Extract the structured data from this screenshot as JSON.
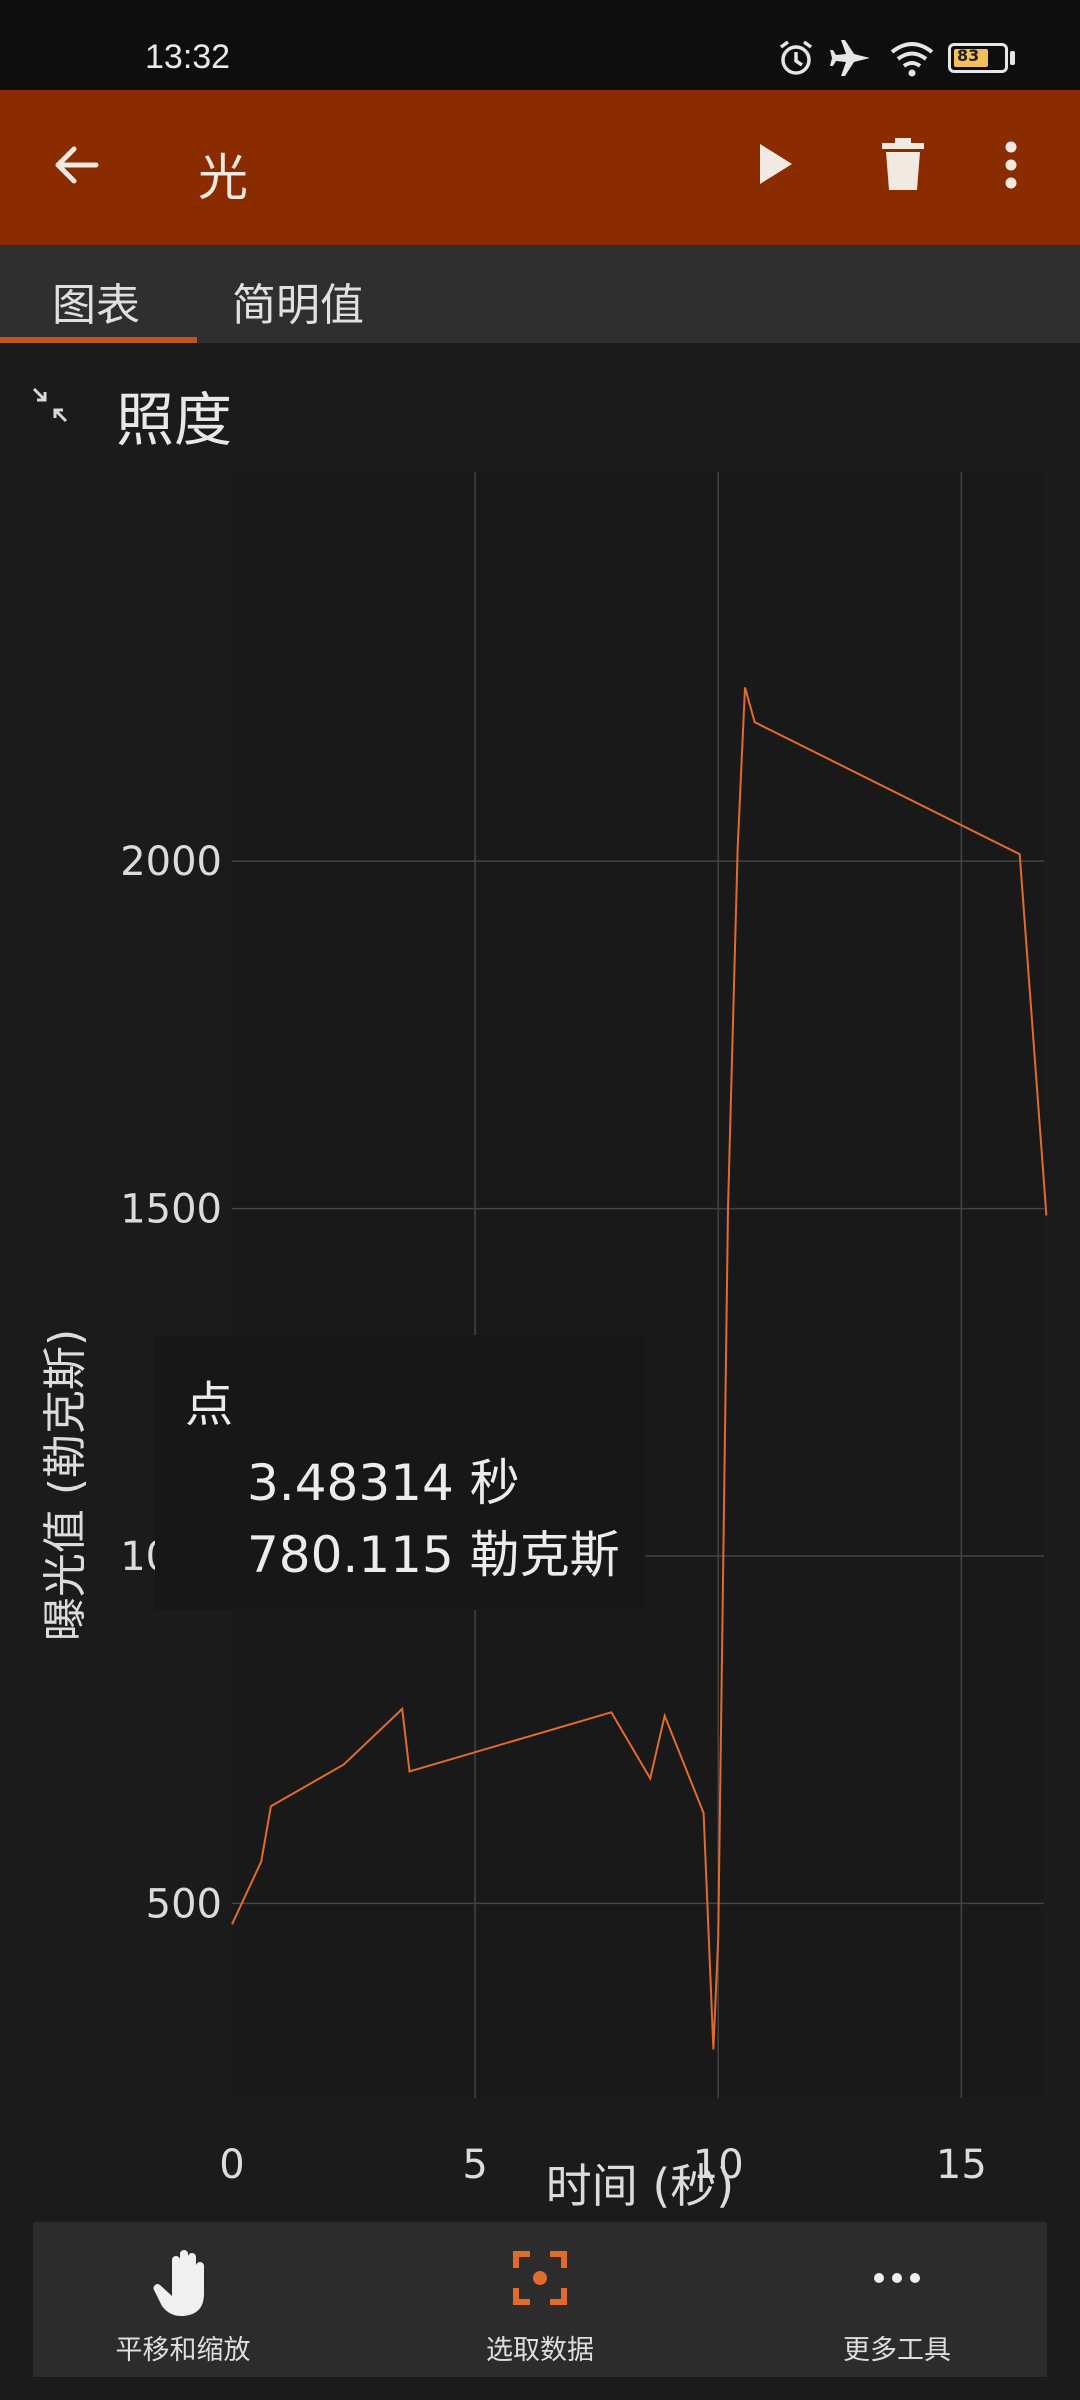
{
  "status_bar": {
    "time": "13:32",
    "battery_level": "83",
    "icons": [
      "alarm-icon",
      "airplane-icon",
      "wifi-icon",
      "battery-icon"
    ]
  },
  "app_bar": {
    "title": "光",
    "color": "#8b2c00"
  },
  "tabs": [
    {
      "label": "图表",
      "active": true
    },
    {
      "label": "简明值",
      "active": false
    }
  ],
  "section": {
    "title": "照度"
  },
  "chart_data": {
    "type": "line",
    "xlabel": "时间 (秒)",
    "ylabel": "曝光值 (勒克斯)",
    "xlim": [
      0,
      16.7
    ],
    "ylim": [
      220,
      2560
    ],
    "x_ticks": [
      "0",
      "5",
      "10",
      "15"
    ],
    "y_ticks": [
      "500",
      "1000",
      "1500",
      "2000"
    ],
    "grid": true,
    "line_color": "#e06b2c",
    "series": [
      {
        "x": [
          0,
          0.6,
          0.8,
          2.3,
          3.5,
          3.65,
          7.8,
          8.6,
          8.9,
          9.7,
          9.9,
          10.0,
          10.2,
          10.4,
          10.55,
          10.75,
          16.2,
          16.75
        ],
        "y": [
          470,
          560,
          640,
          700,
          780,
          690,
          775,
          680,
          770,
          630,
          290,
          450,
          1500,
          2020,
          2250,
          2200,
          2010,
          1490
        ]
      }
    ]
  },
  "tooltip": {
    "heading": "点",
    "x_value": "3.48314 秒",
    "y_value": "780.115 勒克斯"
  },
  "toolbar": {
    "pan_zoom": "平移和缩放",
    "select_data": "选取数据",
    "more_tools": "更多工具",
    "accent": "#e06b2c"
  }
}
